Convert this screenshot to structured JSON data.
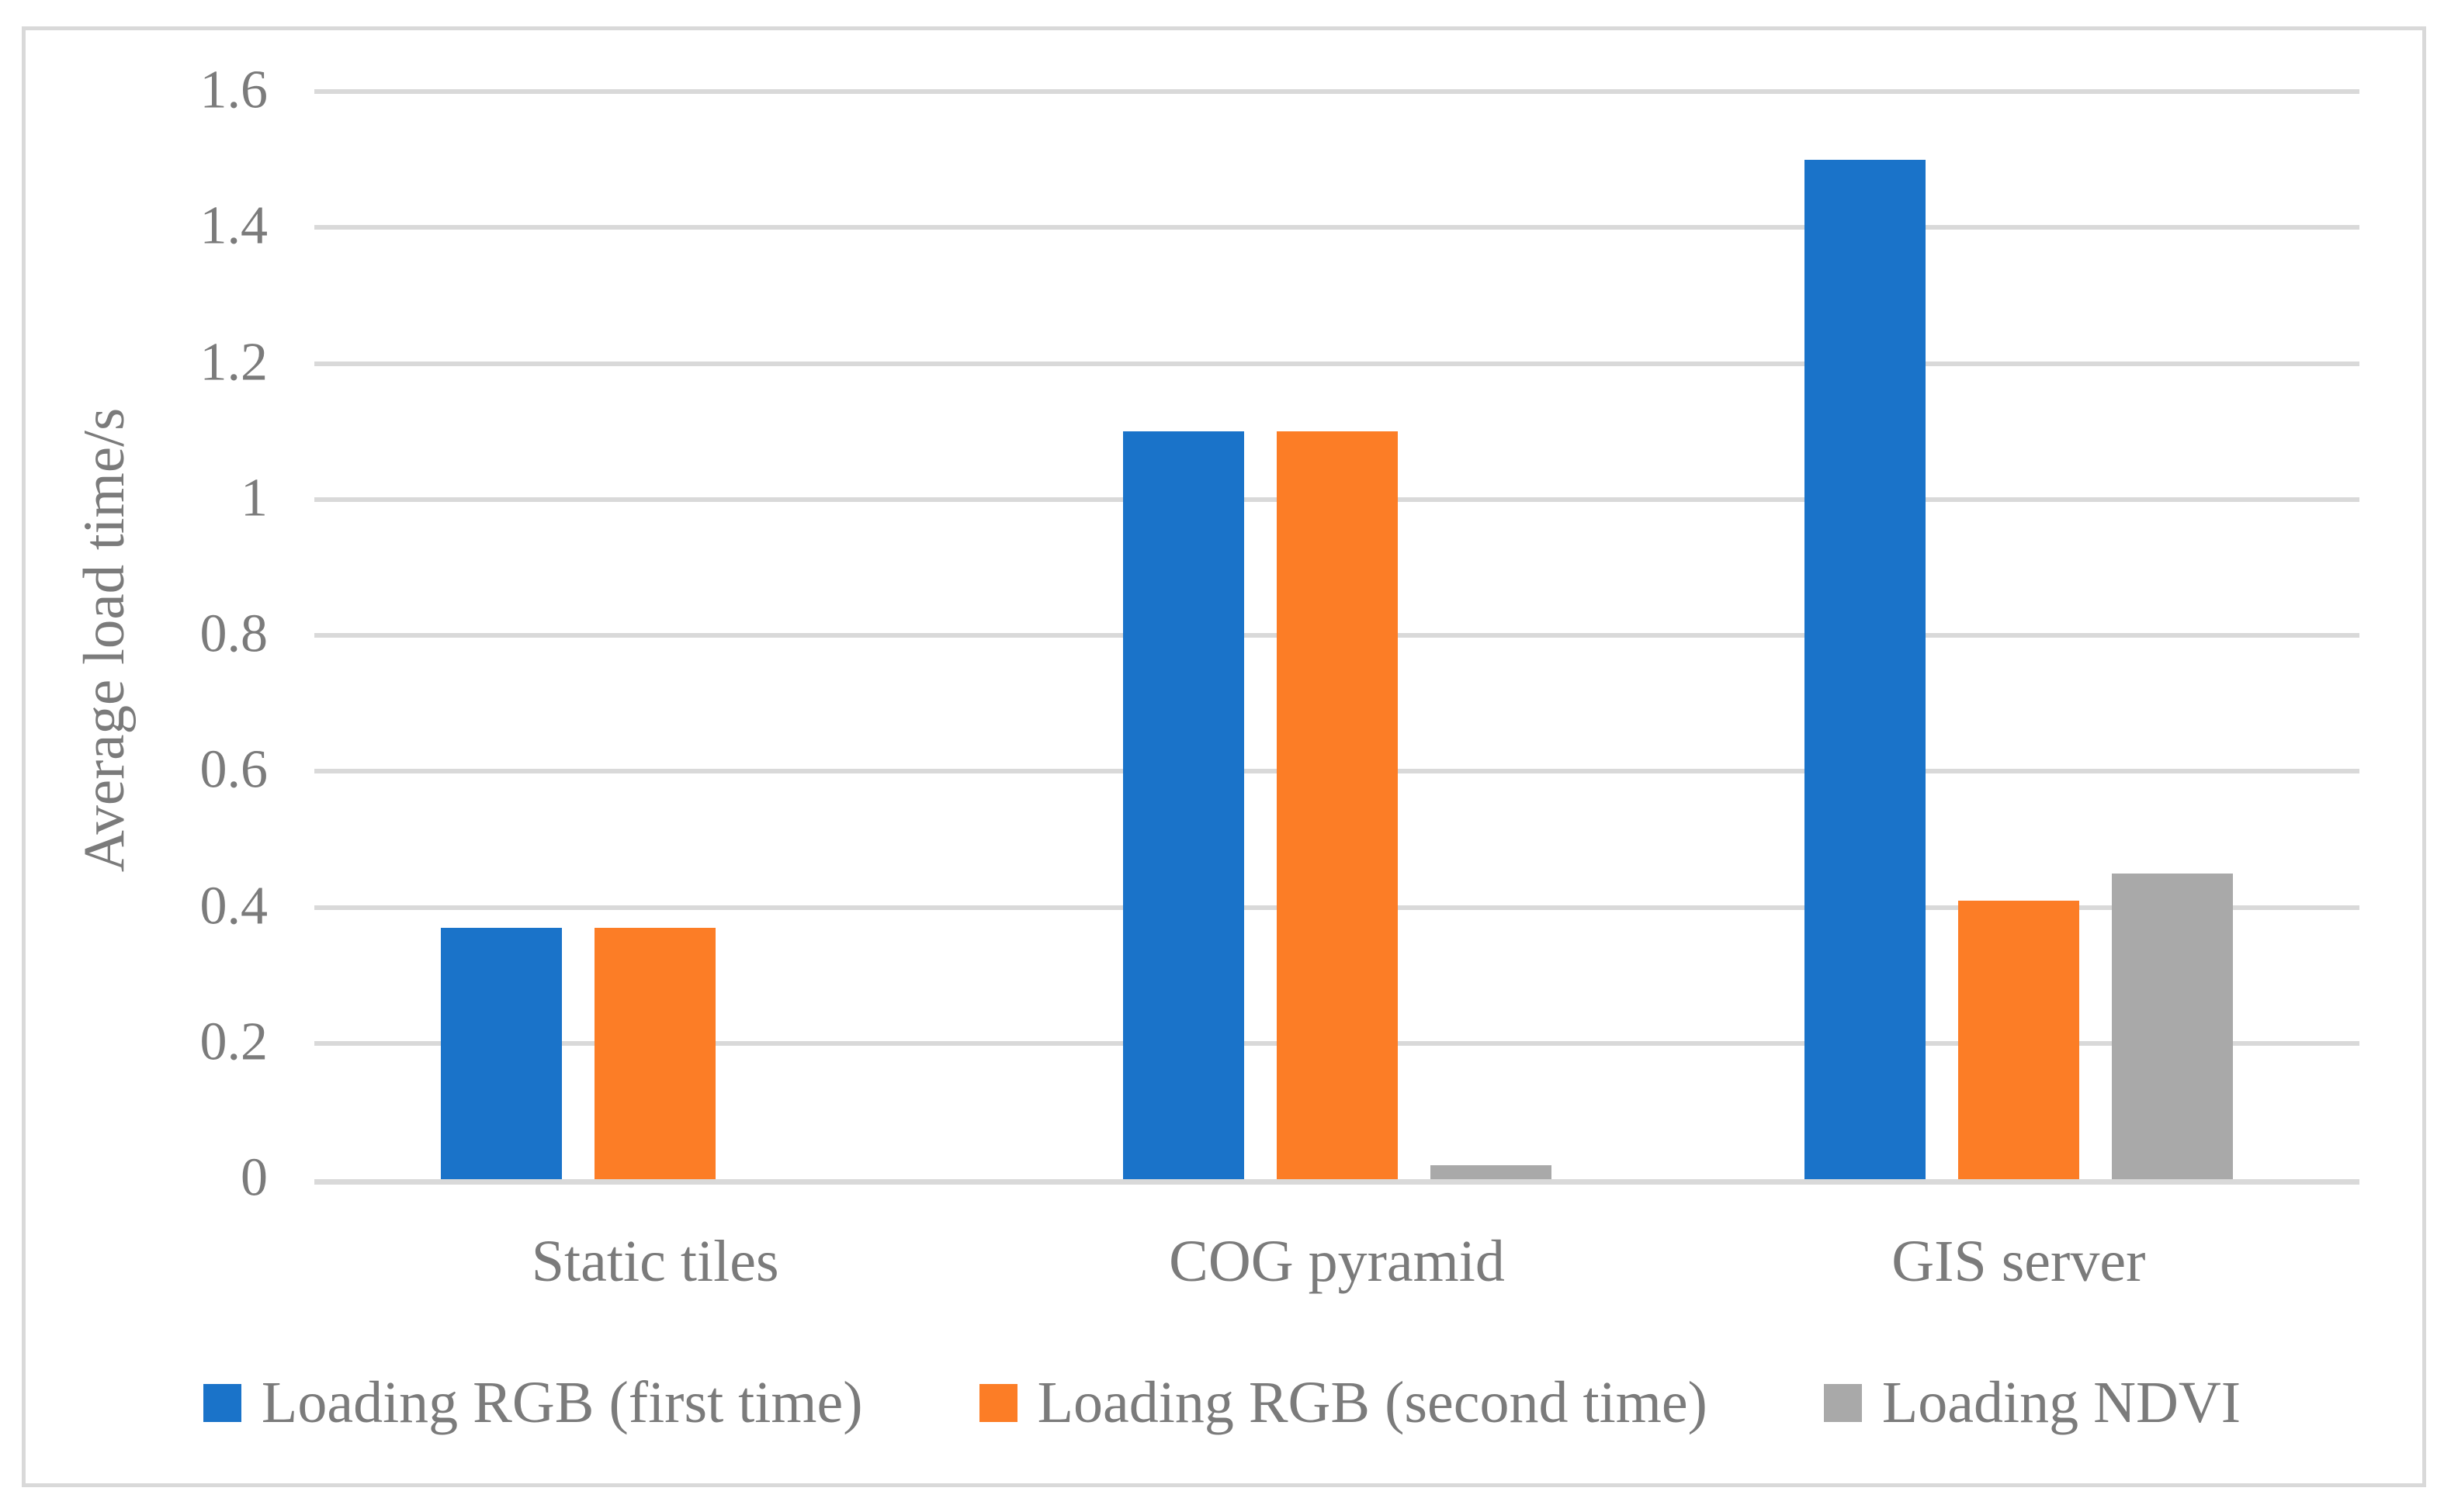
{
  "figure": {
    "background": "#FFFFFF",
    "frame_color": "#D9D9D9"
  },
  "axis": {
    "text_color": "#7B7B7B",
    "gridline_color": "#D9D9D9",
    "y_ticks": [
      "1.6",
      "1.4",
      "1.2",
      "1",
      "0.8",
      "0.6",
      "0.4",
      "0.2",
      "0"
    ]
  },
  "chart_data": {
    "type": "bar",
    "title": "",
    "categories": [
      "Static tiles",
      "COG pyramid",
      "GIS server"
    ],
    "series": [
      {
        "name": "Loading RGB (first time)",
        "color": "#1A73C9",
        "values": [
          0.37,
          1.1,
          1.5
        ]
      },
      {
        "name": "Loading RGB (second time)",
        "color": "#FC7D26",
        "values": [
          0.37,
          1.1,
          0.41
        ]
      },
      {
        "name": "Loading NDVI",
        "color": "#A9A9A9",
        "values": [
          0,
          0.02,
          0.45
        ]
      }
    ],
    "xlabel": "",
    "ylabel": "Average load time/s",
    "ylim": [
      0,
      1.6
    ],
    "ytick_step": 0.2,
    "grid": true,
    "legend_position": "bottom"
  }
}
